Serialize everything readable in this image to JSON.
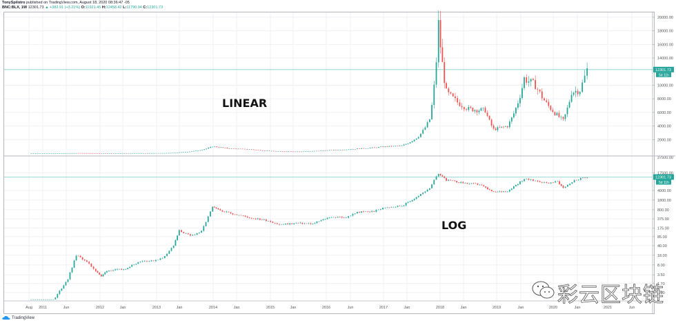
{
  "header": {
    "author": "TonySpilotro",
    "published": "published on TradingView.com, August 18, 2020 08:36:47 -05",
    "symbol": "BNC:BLX, 1W",
    "price": "12301.73",
    "change": "▲ +382.91 (+3.21%)",
    "o_label": "O:",
    "o_value": "11921.45",
    "h_label": "H:",
    "h_value": "12458.42",
    "l_label": "L:",
    "l_value": "11790.94",
    "c_label": "C:",
    "c_value": "12301.73"
  },
  "colors": {
    "up": "#26a69a",
    "down": "#ef5350",
    "grid": "#eef1f5",
    "price_line": "#7fcfc8",
    "axis_text": "#555555"
  },
  "footer": {
    "brand": "TradingView"
  },
  "watermark": "彩云区块链",
  "chart_data": [
    {
      "type": "line",
      "title": "LINEAR",
      "annotation": "LINEAR",
      "scale": "linear",
      "ylabel": "",
      "ylim": [
        0,
        20500
      ],
      "y_ticks": [
        "20000.00",
        "18000.00",
        "16000.00",
        "14000.00",
        "10000.00",
        "8000.00",
        "6000.00",
        "4000.00",
        "2000.00"
      ],
      "y_tick_values": [
        20000,
        18000,
        16000,
        14000,
        10000,
        8000,
        6000,
        4000,
        2000
      ],
      "last_price_label": "12301.73",
      "countdown_label": "5d 11h",
      "x": [
        2010.6,
        2011.0,
        2011.45,
        2011.9,
        2012.5,
        2013.0,
        2013.3,
        2013.9,
        2014.2,
        2014.6,
        2015.0,
        2015.5,
        2016.0,
        2016.5,
        2017.0,
        2017.3,
        2017.6,
        2017.8,
        2017.96,
        2018.1,
        2018.3,
        2018.5,
        2018.8,
        2018.95,
        2019.2,
        2019.5,
        2019.7,
        2019.9,
        2020.2,
        2020.35,
        2020.5,
        2020.63
      ],
      "values": [
        0.07,
        0.3,
        15,
        3,
        6,
        13,
        120,
        1000,
        700,
        550,
        300,
        250,
        430,
        650,
        970,
        1100,
        2500,
        5000,
        19000,
        9000,
        7500,
        6500,
        6300,
        3500,
        4000,
        11000,
        10000,
        7300,
        4800,
        9000,
        9300,
        12300
      ],
      "grid": true
    },
    {
      "type": "line",
      "title": "LOG",
      "annotation": "LOG",
      "scale": "log",
      "ylim": [
        0.5,
        40000
      ],
      "y_ticks": [
        "17500.00",
        "4000.00",
        "1800.00",
        "800.00",
        "375.00",
        "175.00",
        "85.00",
        "40.00",
        "18.00",
        "8.00",
        "3.50",
        "1.70",
        "0.80"
      ],
      "y_tick_values": [
        17500,
        4000,
        1800,
        800,
        375,
        175,
        85,
        40,
        18,
        8,
        3.5,
        1.7,
        0.8
      ],
      "top_clipped_label": "37500.00",
      "last_price_label": "12301.73",
      "countdown_label": "5d 11h",
      "x": [
        2010.6,
        2010.75,
        2010.9,
        2011.0,
        2011.15,
        2011.3,
        2011.45,
        2011.6,
        2011.8,
        2011.9,
        2012.0,
        2012.3,
        2012.6,
        2012.8,
        2013.0,
        2013.2,
        2013.3,
        2013.5,
        2013.7,
        2013.9,
        2014.0,
        2014.3,
        2014.6,
        2014.9,
        2015.1,
        2015.4,
        2015.7,
        2016.0,
        2016.3,
        2016.5,
        2016.8,
        2017.0,
        2017.3,
        2017.6,
        2017.8,
        2017.96,
        2018.1,
        2018.4,
        2018.7,
        2018.95,
        2019.2,
        2019.5,
        2019.7,
        2019.9,
        2020.1,
        2020.2,
        2020.4,
        2020.63
      ],
      "values": [
        0.06,
        0.1,
        0.25,
        0.3,
        0.9,
        2.5,
        18,
        12,
        5,
        3,
        5,
        5.5,
        11,
        11,
        14,
        40,
        140,
        90,
        130,
        1000,
        800,
        550,
        400,
        320,
        230,
        260,
        250,
        430,
        420,
        650,
        700,
        970,
        1100,
        2500,
        5000,
        17000,
        9500,
        7500,
        6500,
        3400,
        3800,
        10500,
        9000,
        7400,
        8500,
        5000,
        9200,
        12300
      ],
      "grid": true
    }
  ],
  "x_axis": {
    "ticks": [
      {
        "label": "Aug",
        "x": 42
      },
      {
        "label": "2011",
        "x": 62
      },
      {
        "label": "Jun",
        "x": 96
      },
      {
        "label": "2012",
        "x": 145
      },
      {
        "label": "Jan",
        "x": 178
      },
      {
        "label": "2013",
        "x": 227
      },
      {
        "label": "Jan",
        "x": 260
      },
      {
        "label": "2014",
        "x": 309
      },
      {
        "label": "Jan",
        "x": 343
      },
      {
        "label": "2015",
        "x": 392
      },
      {
        "label": "Jan",
        "x": 425
      },
      {
        "label": "2016",
        "x": 473
      },
      {
        "label": "Jun",
        "x": 508
      },
      {
        "label": "2017",
        "x": 556
      },
      {
        "label": "Jan",
        "x": 590
      },
      {
        "label": "2018",
        "x": 638
      },
      {
        "label": "Jan",
        "x": 672
      },
      {
        "label": "2019",
        "x": 720
      },
      {
        "label": "Jan",
        "x": 755
      },
      {
        "label": "2020",
        "x": 802
      },
      {
        "label": "Jan",
        "x": 837
      },
      {
        "label": "2021",
        "x": 881
      },
      {
        "label": "Jun",
        "x": 916
      }
    ]
  }
}
